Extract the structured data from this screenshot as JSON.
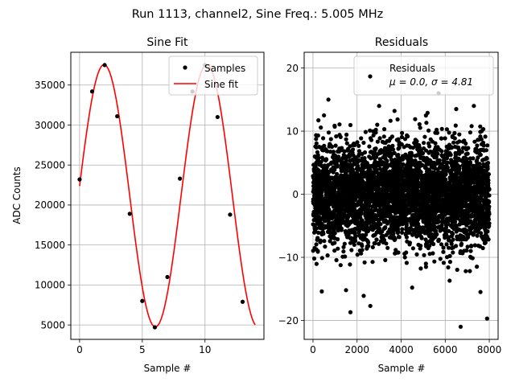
{
  "figure": {
    "suptitle": "Run 1113, channel2, Sine Freq.: 5.005 MHz"
  },
  "chart_data": [
    {
      "type": "line",
      "title": "Sine Fit",
      "xlabel": "Sample #",
      "ylabel": "ADC Counts",
      "xlim": [
        -0.7,
        14.7
      ],
      "ylim": [
        3200,
        39100
      ],
      "xticks": [
        0,
        5,
        10
      ],
      "yticks": [
        5000,
        10000,
        15000,
        20000,
        25000,
        30000,
        35000
      ],
      "grid": true,
      "legend": {
        "position": "top-right",
        "entries": [
          "Samples",
          "Sine fit"
        ]
      },
      "series": [
        {
          "name": "Samples",
          "kind": "scatter",
          "color": "#000000",
          "x": [
            0,
            1,
            2,
            3,
            4,
            5,
            6,
            7,
            8,
            9,
            10,
            11,
            12,
            13
          ],
          "y": [
            23200,
            34200,
            37500,
            31100,
            18900,
            8000,
            4700,
            11000,
            23300,
            34200,
            37500,
            31000,
            18800,
            7900
          ]
        },
        {
          "name": "Sine fit",
          "kind": "line",
          "color": "#ff0000",
          "x_range": [
            0,
            14
          ],
          "amplitude": 16400,
          "offset": 21150,
          "period_samples": 8.19,
          "peak_at_sample": 1.95
        }
      ]
    },
    {
      "type": "scatter",
      "title": "Residuals",
      "xlabel": "Sample #",
      "ylabel": "",
      "xlim": [
        -400,
        8400
      ],
      "ylim": [
        -23,
        22.5
      ],
      "xticks": [
        0,
        2000,
        4000,
        6000,
        8000
      ],
      "yticks": [
        -20,
        -10,
        0,
        10,
        20
      ],
      "grid": true,
      "legend": {
        "position": "top-right",
        "entries": [
          "Residuals",
          "μ = 0.0, σ = 4.81"
        ]
      },
      "series": [
        {
          "name": "Residuals",
          "color": "#000000",
          "n_points": 8000,
          "mean": 0.0,
          "sigma": 4.81,
          "x": [
            700,
            1700,
            2600,
            5700,
            6700,
            7900,
            500,
            1500,
            3000,
            4500,
            6500,
            7600,
            2300,
            5200,
            400,
            3700,
            6200,
            7300
          ],
          "y": [
            15,
            -18.7,
            -17.7,
            16,
            -21,
            -19.7,
            12.5,
            -15.2,
            14,
            -14.8,
            13.5,
            -15.5,
            -16.1,
            12.9,
            -15.4,
            13.2,
            -13.7,
            14
          ]
        }
      ]
    }
  ]
}
